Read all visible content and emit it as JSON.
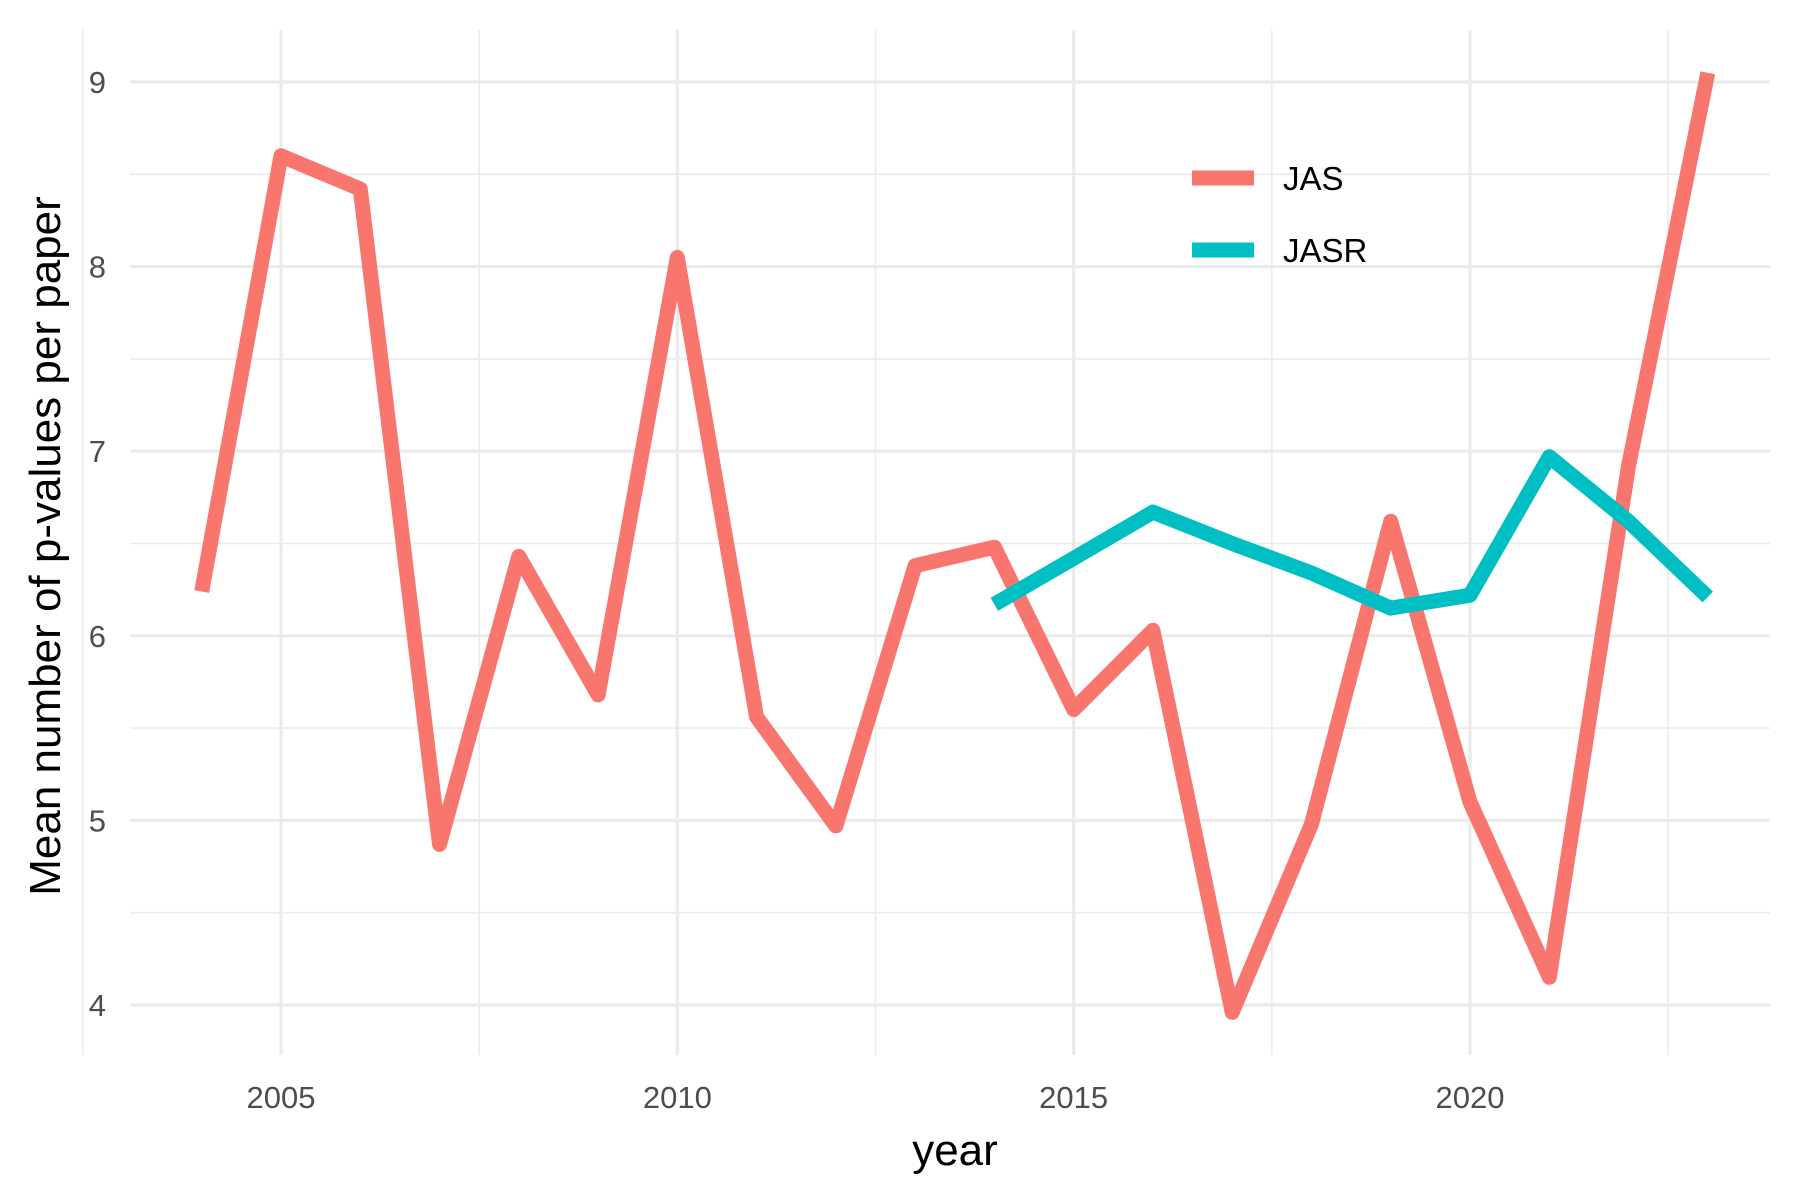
{
  "chart_data": {
    "type": "line",
    "title": "",
    "xlabel": "year",
    "ylabel": "Mean number of p-values per paper",
    "xlim": [
      2003.4,
      2024.0
    ],
    "ylim": [
      3.7,
      9.25
    ],
    "x_ticks": [
      2005,
      2010,
      2015,
      2020
    ],
    "x_tick_labels": [
      "2005",
      "2010",
      "2015",
      "2020"
    ],
    "y_ticks": [
      4,
      5,
      6,
      7,
      8,
      9
    ],
    "y_tick_labels": [
      "4",
      "5",
      "6",
      "7",
      "8",
      "9"
    ],
    "grid": true,
    "legend_position": "top-right",
    "series": [
      {
        "name": "JAS",
        "color": "#F8766D",
        "x": [
          2004,
          2005,
          2006,
          2007,
          2008,
          2009,
          2010,
          2011,
          2012,
          2013,
          2014,
          2015,
          2016,
          2017,
          2018,
          2019,
          2020,
          2021,
          2022,
          2023
        ],
        "y": [
          6.24,
          8.6,
          8.42,
          4.87,
          6.43,
          5.68,
          8.05,
          5.56,
          4.97,
          6.38,
          6.48,
          5.6,
          6.03,
          3.96,
          4.98,
          6.62,
          5.1,
          4.15,
          6.92,
          9.05
        ]
      },
      {
        "name": "JASR",
        "color": "#00BFC4",
        "x": [
          2014,
          2015,
          2016,
          2017,
          2018,
          2019,
          2020,
          2021,
          2022,
          2023
        ],
        "y": [
          6.17,
          6.42,
          6.67,
          6.5,
          6.34,
          6.15,
          6.22,
          6.97,
          6.62,
          6.21
        ]
      }
    ]
  }
}
